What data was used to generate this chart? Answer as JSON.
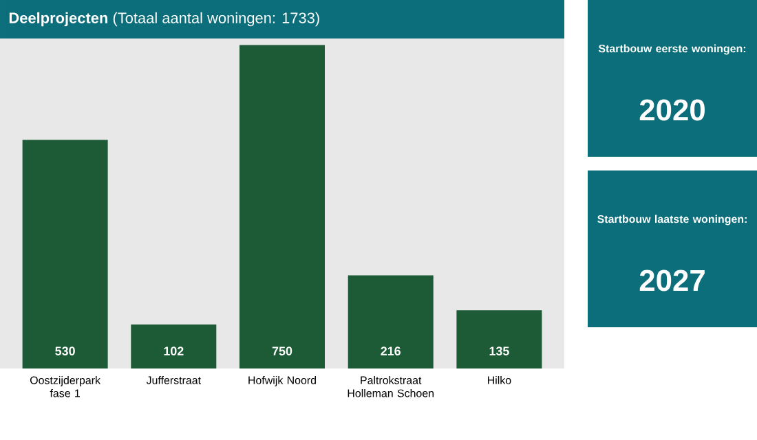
{
  "chart_data": {
    "type": "bar",
    "title": "**Deelprojecten** (Totaal aantal woningen: 1733)",
    "categories": [
      "Oostzijderpark fase 1",
      "Jufferstraat",
      "Hofwijk Noord",
      "Paltrokstraat Holleman Schoen",
      "Hilko"
    ],
    "values": [
      530,
      102,
      750,
      216,
      135
    ],
    "color": "#1d5b36",
    "data_labels": true,
    "annotations": [
      "Startbouw eerste woningen:",
      "2020",
      "Startbouw laatste woningen:",
      "2027"
    ]
  }
}
